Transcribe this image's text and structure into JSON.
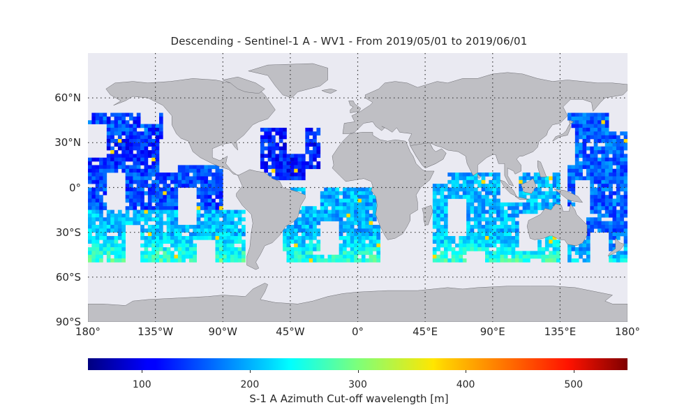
{
  "figure": {
    "title": "Descending - Sentinel-1 A - WV1 - From 2019/05/01 to 2019/06/01"
  },
  "map": {
    "projection": "equirectangular",
    "background_color": "#eaeaf2",
    "land_color": "#bfbfc4",
    "gridline_style": "dotted",
    "lon_range": [
      -180,
      180
    ],
    "lat_range": [
      -90,
      90
    ],
    "lat_ticks": [
      {
        "value": 60,
        "label": "60°N"
      },
      {
        "value": 30,
        "label": "30°N"
      },
      {
        "value": 0,
        "label": "0°"
      },
      {
        "value": -30,
        "label": "30°S"
      },
      {
        "value": -60,
        "label": "60°S"
      },
      {
        "value": -90,
        "label": "90°S"
      }
    ],
    "lon_ticks": [
      {
        "value": -180,
        "label": "180°"
      },
      {
        "value": -135,
        "label": "135°W"
      },
      {
        "value": -90,
        "label": "90°W"
      },
      {
        "value": -45,
        "label": "45°W"
      },
      {
        "value": 0,
        "label": "0°"
      },
      {
        "value": 45,
        "label": "45°E"
      },
      {
        "value": 90,
        "label": "90°E"
      },
      {
        "value": 135,
        "label": "135°E"
      },
      {
        "value": 180,
        "label": "180°"
      }
    ],
    "data_lat_extent": [
      -50,
      50
    ],
    "data_regions": [
      {
        "name": "North Pacific",
        "lon": [
          -180,
          -130
        ],
        "lat": [
          15,
          50
        ],
        "mean_m": 130
      },
      {
        "name": "Central Pacific",
        "lon": [
          -180,
          -90
        ],
        "lat": [
          -15,
          15
        ],
        "mean_m": 150
      },
      {
        "name": "South Pacific",
        "lon": [
          -180,
          -75
        ],
        "lat": [
          -50,
          -15
        ],
        "mean_m": 205
      },
      {
        "name": "North Atlantic",
        "lon": [
          -65,
          -25
        ],
        "lat": [
          5,
          40
        ],
        "mean_m": 125
      },
      {
        "name": "South Atlantic",
        "lon": [
          -50,
          15
        ],
        "lat": [
          -50,
          0
        ],
        "mean_m": 200
      },
      {
        "name": "Indian Ocean",
        "lon": [
          50,
          135
        ],
        "lat": [
          -50,
          10
        ],
        "mean_m": 200
      },
      {
        "name": "West Pacific",
        "lon": [
          140,
          180
        ],
        "lat": [
          -50,
          50
        ],
        "mean_m": 160
      }
    ]
  },
  "colorbar": {
    "colormap": "jet",
    "range": [
      50,
      550
    ],
    "ticks": [
      {
        "value": 100,
        "label": "100"
      },
      {
        "value": 200,
        "label": "200"
      },
      {
        "value": 300,
        "label": "300"
      },
      {
        "value": 400,
        "label": "400"
      },
      {
        "value": 500,
        "label": "500"
      }
    ],
    "label": "S-1 A Azimuth Cut-off wavelength [m]"
  }
}
